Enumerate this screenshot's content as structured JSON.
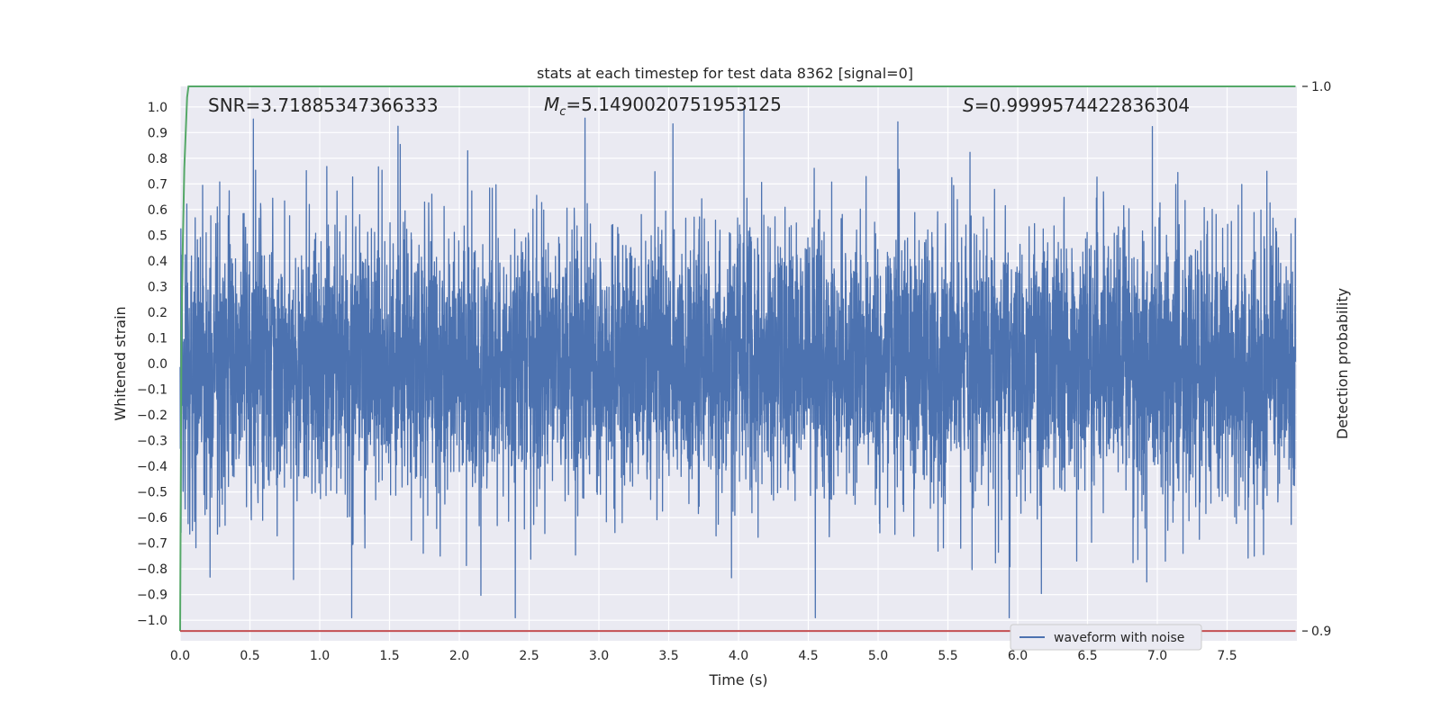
{
  "chart_data": {
    "type": "line",
    "title": "stats at each timestep for test data 8362 [signal=0]",
    "xlabel": "Time (s)",
    "ylabel": "Whitened strain",
    "ylabel_right": "Detection probability",
    "xlim": [
      0.0,
      8.0
    ],
    "ylim": [
      -1.08,
      1.08
    ],
    "ylim_right": [
      0.8982,
      1.0
    ],
    "x_ticks": [
      "0.0",
      "0.5",
      "1.0",
      "1.5",
      "2.0",
      "2.5",
      "3.0",
      "3.5",
      "4.0",
      "4.5",
      "5.0",
      "5.5",
      "6.0",
      "6.5",
      "7.0",
      "7.5"
    ],
    "y_ticks": [
      "1.0",
      "0.9",
      "0.8",
      "0.7",
      "0.6",
      "0.5",
      "0.4",
      "0.3",
      "0.2",
      "0.1",
      "0.0",
      "−0.1",
      "−0.2",
      "−0.3",
      "−0.4",
      "−0.5",
      "−0.6",
      "−0.7",
      "−0.8",
      "−0.9",
      "−1.0"
    ],
    "y_right_ticks": [
      "1.0",
      "0.9"
    ],
    "grid": true,
    "legend_position": "lower-right",
    "annotations": {
      "snr": "SNR=3.71885347366333",
      "mc_symbol": "M",
      "mc_sub": "c",
      "mc_value": "=5.1490020751953125",
      "s_symbol": "S",
      "s_value": "=0.9999574422836304"
    },
    "series": [
      {
        "name": "waveform with noise",
        "color": "#4c72b0",
        "axis": "left",
        "x_range": [
          0.0,
          7.99
        ],
        "amplitude_envelope": [
          -0.99,
          1.0
        ]
      },
      {
        "name": "",
        "color": "#55a868",
        "axis": "right",
        "x": [
          0.0,
          0.01,
          0.02,
          0.03,
          0.05,
          0.06,
          7.99
        ],
        "y": [
          0.9,
          0.957,
          0.972,
          0.985,
          0.998,
          1.0,
          1.0
        ]
      },
      {
        "name": "",
        "color": "#c44e52",
        "axis": "right",
        "x": [
          0.0,
          7.99
        ],
        "y": [
          0.9,
          0.9
        ]
      }
    ]
  }
}
